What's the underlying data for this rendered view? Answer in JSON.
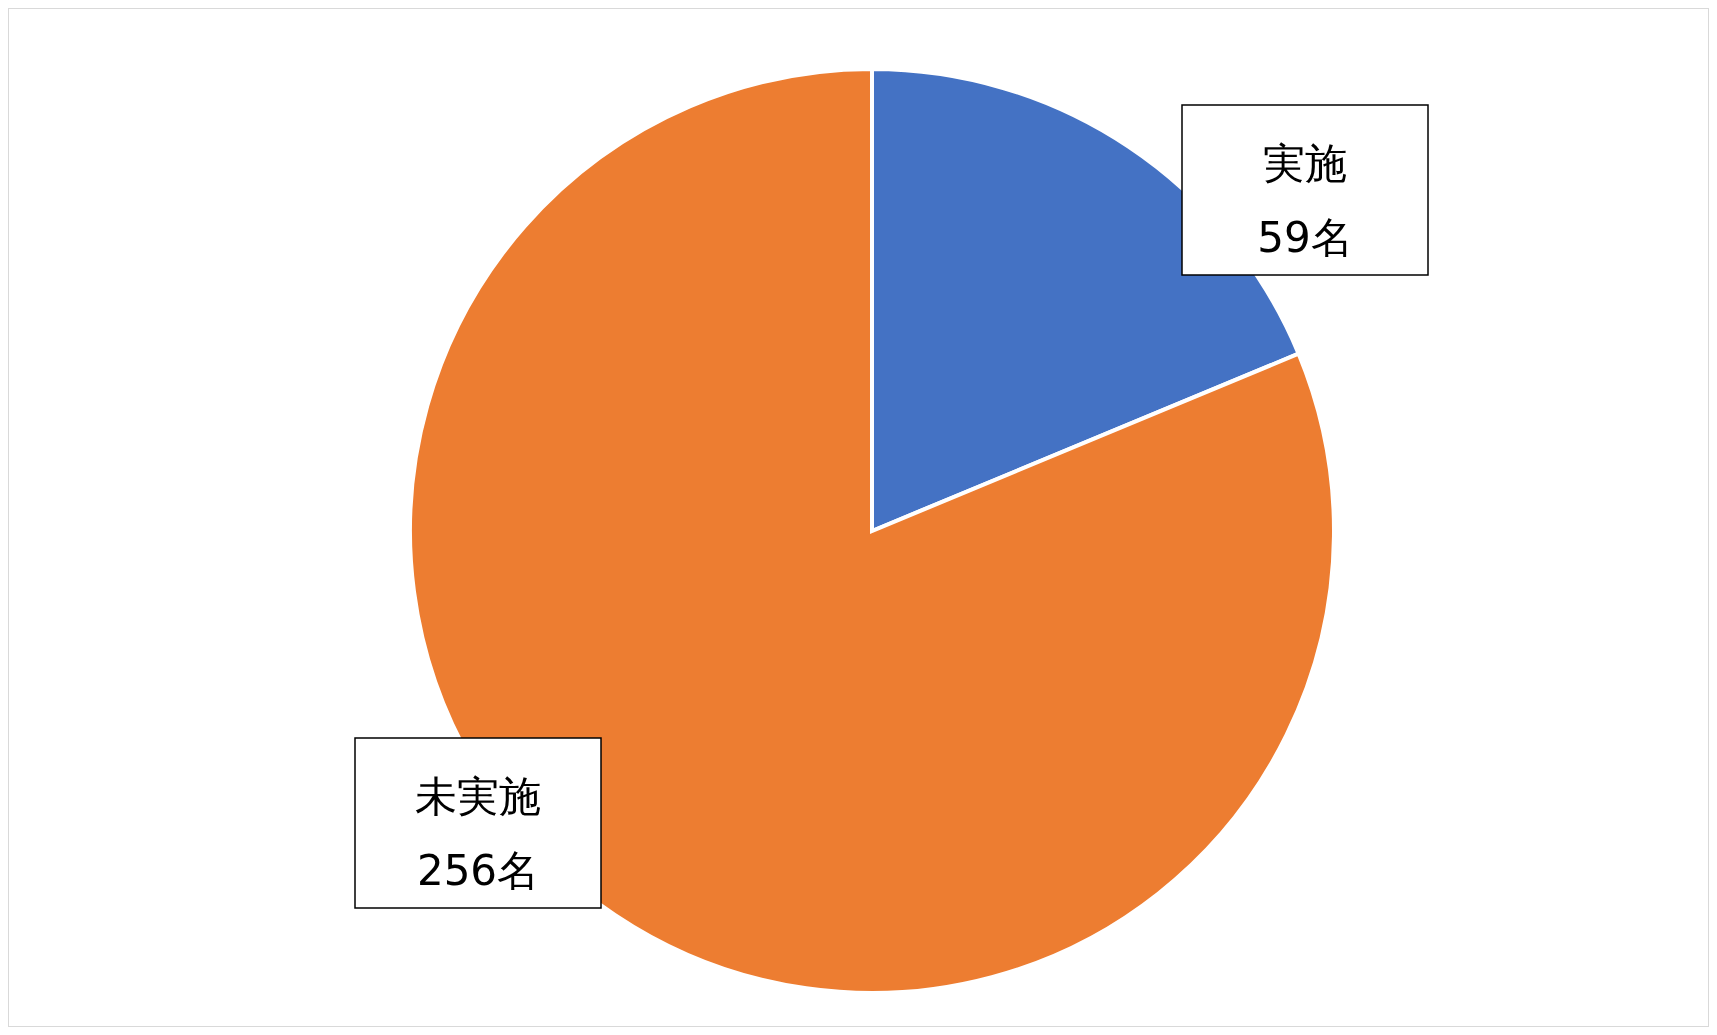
{
  "chart_data": {
    "type": "pie",
    "categories": [
      "実施",
      "未実施"
    ],
    "values": [
      59,
      256
    ],
    "colors": [
      "#4472c4",
      "#ed7d31"
    ],
    "value_labels": [
      "59名",
      "256名"
    ]
  }
}
